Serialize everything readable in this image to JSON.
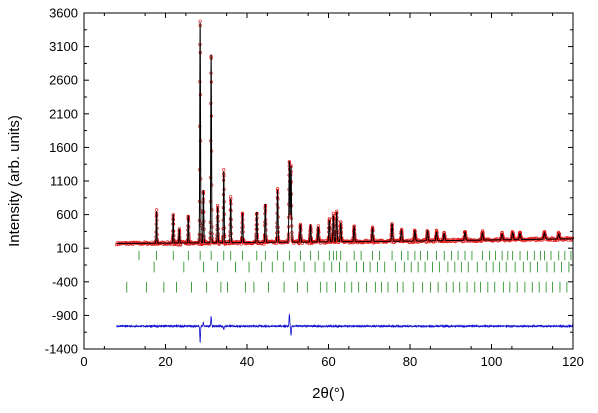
{
  "chart_data": {
    "type": "line",
    "title": "",
    "xlabel": "2θ(°)",
    "ylabel": "Intensity (arb. units)",
    "xlim": [
      0,
      120
    ],
    "ylim": [
      -1400,
      3600
    ],
    "xticks": [
      0,
      20,
      40,
      60,
      80,
      100,
      120
    ],
    "yticks": [
      -1400,
      -900,
      -400,
      100,
      600,
      1100,
      1600,
      2100,
      2600,
      3100,
      3600
    ],
    "grid": false,
    "legend": "none",
    "series": [
      {
        "role": "observed",
        "style": "red open circles",
        "color": "#e01818",
        "x_range": [
          8,
          120
        ],
        "baseline": [
          [
            8,
            170
          ],
          [
            40,
            185
          ],
          [
            80,
            205
          ],
          [
            120,
            240
          ]
        ],
        "peaks": [
          [
            17.8,
            650
          ],
          [
            21.9,
            610
          ],
          [
            23.4,
            380
          ],
          [
            25.6,
            590
          ],
          [
            28.5,
            3480
          ],
          [
            29.3,
            960
          ],
          [
            31.2,
            3000
          ],
          [
            32.8,
            720
          ],
          [
            34.3,
            1250
          ],
          [
            36.0,
            840
          ],
          [
            38.9,
            620
          ],
          [
            42.4,
            640
          ],
          [
            44.5,
            760
          ],
          [
            47.5,
            970
          ],
          [
            50.4,
            1400
          ],
          [
            50.8,
            1330
          ],
          [
            53.1,
            440
          ],
          [
            55.6,
            440
          ],
          [
            57.5,
            420
          ],
          [
            60.2,
            520
          ],
          [
            61.2,
            590
          ],
          [
            62.0,
            640
          ],
          [
            63.0,
            470
          ],
          [
            66.3,
            420
          ],
          [
            70.8,
            400
          ],
          [
            75.6,
            460
          ],
          [
            77.9,
            370
          ],
          [
            81.2,
            360
          ],
          [
            84.3,
            360
          ],
          [
            86.5,
            340
          ],
          [
            88.4,
            320
          ],
          [
            93.5,
            340
          ],
          [
            97.8,
            330
          ],
          [
            102.6,
            310
          ],
          [
            105.2,
            330
          ],
          [
            107.0,
            320
          ],
          [
            113.0,
            330
          ],
          [
            116.5,
            310
          ]
        ]
      },
      {
        "role": "calculated",
        "style": "black line",
        "color": "#000000"
      },
      {
        "role": "difference",
        "style": "blue line",
        "color": "#1010d0",
        "offset": -1060,
        "spikes": [
          [
            28.5,
            -240
          ],
          [
            29.3,
            60
          ],
          [
            31.2,
            150
          ],
          [
            34.3,
            -60
          ],
          [
            50.4,
            180
          ],
          [
            50.8,
            -140
          ]
        ]
      }
    ],
    "reflection_markers": [
      {
        "phase": 1,
        "color": "#1a8a1a",
        "y_top": 60,
        "y_bottom": -80,
        "first_x": 13.5,
        "positions": [
          13.5,
          17.8,
          21.9,
          25.6,
          28.5,
          31.2,
          34.3,
          36.0,
          38.9,
          42.4,
          44.5,
          47.5,
          50.4,
          53.1,
          55.6,
          57.5,
          60.2,
          61.2,
          62.0,
          63.0,
          66.3,
          68.0,
          70.8,
          72.5,
          75.6,
          77.9,
          79.5,
          81.2,
          82.6,
          84.3,
          86.5,
          88.4,
          90.2,
          91.8,
          93.5,
          95.2,
          97.8,
          99.5,
          101.0,
          102.6,
          104.0,
          105.2,
          107.0,
          108.8,
          110.5,
          112.0,
          113.0,
          114.6,
          116.5,
          118.0,
          119.5
        ]
      },
      {
        "phase": 2,
        "color": "#1a8a1a",
        "y_top": -100,
        "y_bottom": -260,
        "first_x": 17.2,
        "positions": [
          17.2,
          24.5,
          29.3,
          32.8,
          37.2,
          40.5,
          43.6,
          46.2,
          48.9,
          51.8,
          54.0,
          56.7,
          58.9,
          60.8,
          62.7,
          64.5,
          66.9,
          68.6,
          70.2,
          72.0,
          73.8,
          76.4,
          78.6,
          80.3,
          82.0,
          83.7,
          85.5,
          87.2,
          89.3,
          91.0,
          92.6,
          94.3,
          96.5,
          98.7,
          100.4,
          102.0,
          103.6,
          105.8,
          107.8,
          109.5,
          111.3,
          113.6,
          115.4,
          117.2,
          119.0
        ]
      },
      {
        "phase": 3,
        "color": "#1a8a1a",
        "y_top": -400,
        "y_bottom": -560,
        "first_x": 10.5,
        "positions": [
          10.5,
          15.3,
          19.6,
          22.7,
          26.4,
          30.1,
          33.6,
          35.2,
          39.6,
          41.7,
          45.3,
          49.1,
          52.4,
          54.8,
          58.0,
          59.6,
          61.7,
          64.0,
          65.7,
          67.4,
          69.3,
          71.5,
          73.0,
          74.6,
          76.9,
          78.3,
          80.8,
          83.1,
          85.0,
          86.9,
          88.9,
          90.6,
          92.2,
          94.0,
          95.9,
          97.3,
          99.1,
          100.8,
          102.9,
          104.5,
          106.3,
          108.2,
          110.0,
          111.7,
          113.4,
          115.0,
          116.8,
          118.5
        ]
      }
    ]
  }
}
